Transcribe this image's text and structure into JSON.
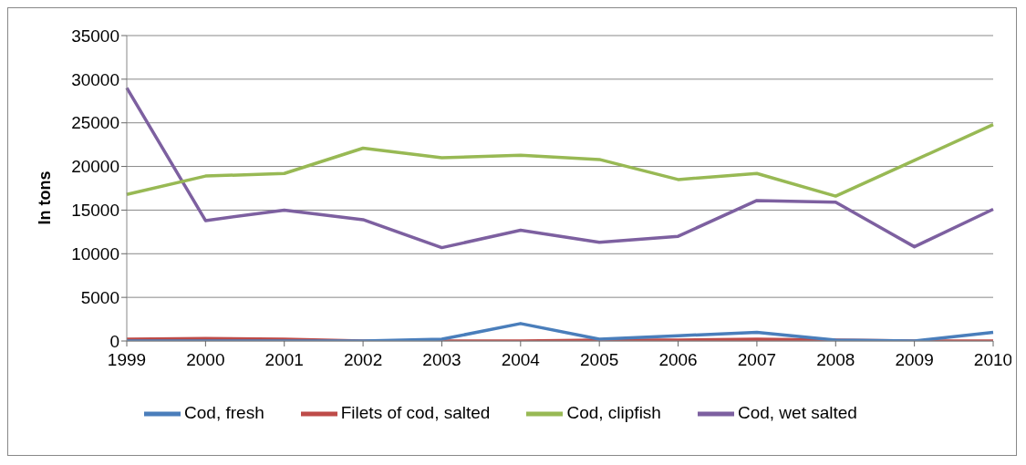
{
  "chart_data": {
    "type": "line",
    "ylabel": "In tons",
    "categories": [
      "1999",
      "2000",
      "2001",
      "2002",
      "2003",
      "2004",
      "2005",
      "2006",
      "2007",
      "2008",
      "2009",
      "2010"
    ],
    "series": [
      {
        "name": "Cod, fresh",
        "color": "#4a7ebb",
        "values": [
          0,
          0,
          0,
          0,
          200,
          2000,
          200,
          600,
          1000,
          100,
          0,
          1000
        ]
      },
      {
        "name": "Filets of cod, salted",
        "color": "#be4b48",
        "values": [
          200,
          300,
          200,
          0,
          0,
          0,
          100,
          100,
          200,
          100,
          0,
          0
        ]
      },
      {
        "name": "Cod, clipfish",
        "color": "#98b954",
        "values": [
          16800,
          18900,
          19200,
          22100,
          21000,
          21300,
          20800,
          18500,
          19200,
          16600,
          20700,
          24800
        ]
      },
      {
        "name": "Cod, wet salted",
        "color": "#7d60a0",
        "values": [
          29000,
          13800,
          15000,
          13900,
          10700,
          12700,
          11300,
          12000,
          16100,
          15900,
          10800,
          15100
        ]
      }
    ],
    "ylim": [
      0,
      35000
    ],
    "yticks": [
      0,
      5000,
      10000,
      15000,
      20000,
      25000,
      30000,
      35000
    ],
    "grid": "y",
    "legend": "bottom",
    "marker": "none",
    "line_style": "solid"
  }
}
